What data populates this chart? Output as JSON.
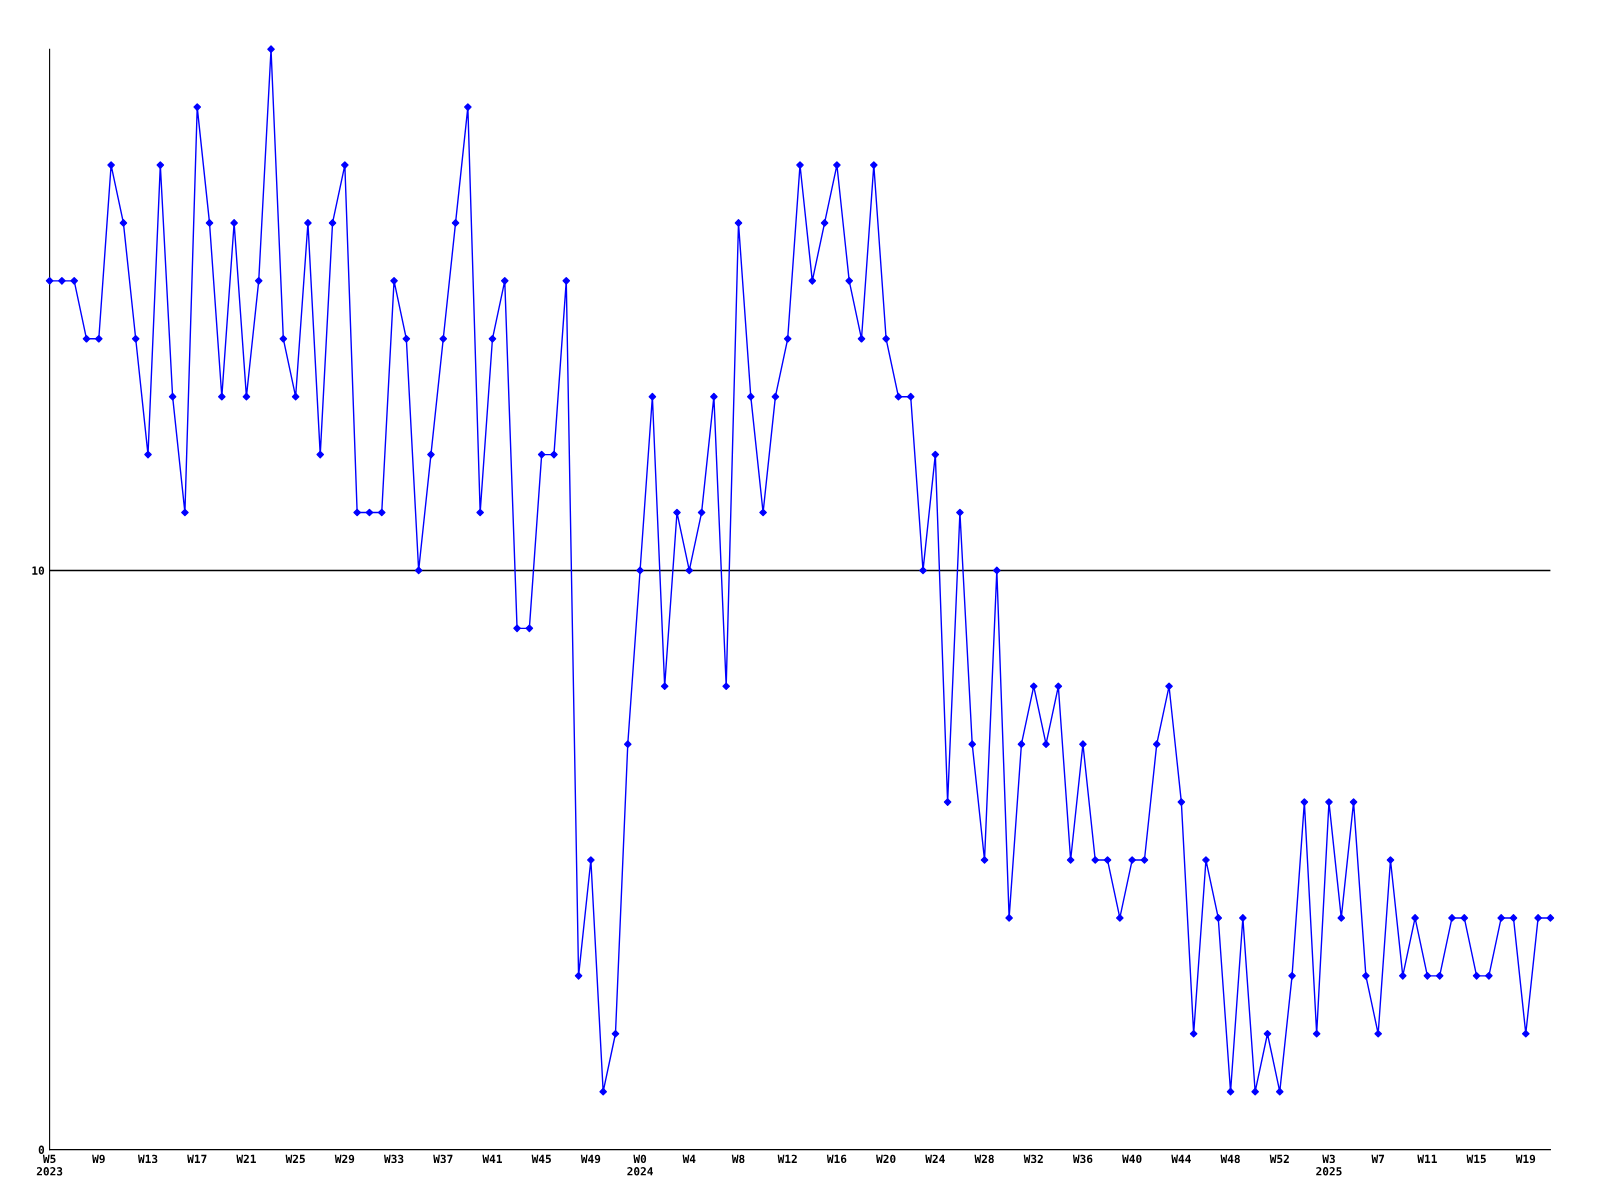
{
  "chart_data": {
    "type": "line",
    "categories": [
      "W5\n2023",
      null,
      null,
      null,
      "W9",
      null,
      null,
      null,
      "W13",
      null,
      null,
      null,
      "W17",
      null,
      null,
      null,
      "W21",
      null,
      null,
      null,
      "W25",
      null,
      null,
      null,
      "W29",
      null,
      null,
      null,
      "W33",
      null,
      null,
      null,
      "W37",
      null,
      null,
      null,
      "W41",
      null,
      null,
      null,
      "W45",
      null,
      null,
      null,
      "W49",
      null,
      null,
      null,
      "W0\n2024",
      null,
      null,
      null,
      "W4",
      null,
      null,
      null,
      "W8",
      null,
      null,
      null,
      "W12",
      null,
      null,
      null,
      "W16",
      null,
      null,
      null,
      "W20",
      null,
      null,
      null,
      "W24",
      null,
      null,
      null,
      "W28",
      null,
      null,
      null,
      "W32",
      null,
      null,
      null,
      "W36",
      null,
      null,
      null,
      "W40",
      null,
      null,
      null,
      "W44",
      null,
      null,
      null,
      "W48",
      null,
      null,
      null,
      "W52",
      null,
      null,
      null,
      "W3\n2025",
      null,
      null,
      null,
      "W7",
      null,
      null,
      null,
      "W11",
      null,
      null,
      null,
      "W15",
      null,
      null,
      null,
      "W19",
      null,
      null
    ],
    "series": [
      {
        "color": "#0000ff",
        "values": [
          15,
          15,
          15,
          14,
          14,
          17,
          16,
          14,
          12,
          17,
          13,
          11,
          18,
          16,
          13,
          16,
          13,
          15,
          19,
          14,
          13,
          16,
          12,
          16,
          17,
          11,
          11,
          11,
          15,
          14,
          10,
          12,
          14,
          16,
          18,
          11,
          14,
          15,
          9,
          9,
          12,
          12,
          15,
          3,
          5,
          1,
          2,
          7,
          10,
          13,
          8,
          11,
          10,
          11,
          13,
          8,
          16,
          13,
          11,
          13,
          14,
          17,
          15,
          16,
          17,
          15,
          14,
          17,
          14,
          13,
          13,
          10,
          12,
          6,
          11,
          7,
          5,
          10,
          4,
          7,
          8,
          7,
          8,
          5,
          7,
          5,
          5,
          4,
          5,
          5,
          7,
          8,
          6,
          2,
          5,
          4,
          1,
          4,
          1,
          2,
          1,
          3,
          6,
          2,
          6,
          4,
          6,
          3,
          2,
          5,
          3,
          4,
          3,
          3,
          4,
          4,
          3,
          3,
          4,
          4,
          2,
          4,
          4
        ]
      }
    ],
    "ylim": [
      0,
      19
    ],
    "yticks": [
      0,
      10
    ],
    "grid": "y",
    "marker": "diamond",
    "line_style": "solid",
    "legend": false
  }
}
